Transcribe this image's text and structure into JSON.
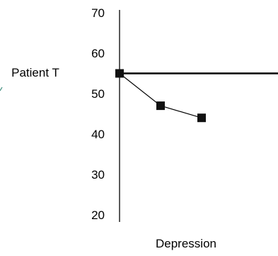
{
  "chart_data": {
    "type": "line",
    "ylabel": "Patient T",
    "xlabel": "Depression",
    "ylim": [
      20,
      70
    ],
    "yticks": [
      20,
      30,
      40,
      50,
      60,
      70
    ],
    "reference_line": {
      "y": 55
    },
    "series": [
      {
        "values": [
          55,
          47,
          44
        ]
      }
    ],
    "grid": false,
    "legend": "none",
    "colors": {
      "line": "#000000",
      "marker": "#111111",
      "accent": "#3a8a7a"
    }
  }
}
